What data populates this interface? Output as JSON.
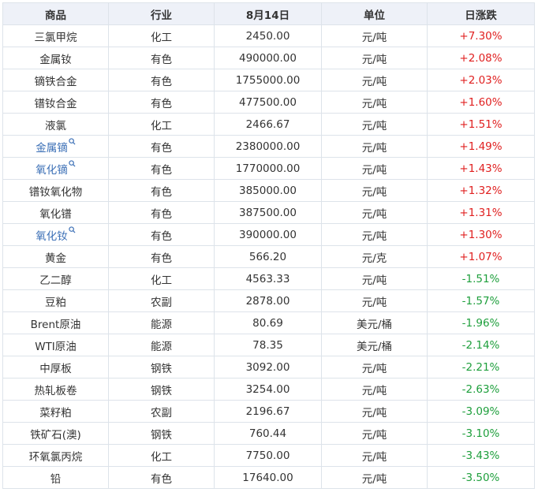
{
  "table": {
    "headers": [
      "商品",
      "行业",
      "8月14日",
      "单位",
      "日涨跌"
    ],
    "rows": [
      {
        "name": "三氯甲烷",
        "industry": "化工",
        "price": "2450.00",
        "unit": "元/吨",
        "change": "+7.30%",
        "direction": "up",
        "link": false
      },
      {
        "name": "金属钕",
        "industry": "有色",
        "price": "490000.00",
        "unit": "元/吨",
        "change": "+2.08%",
        "direction": "up",
        "link": false
      },
      {
        "name": "镝铁合金",
        "industry": "有色",
        "price": "1755000.00",
        "unit": "元/吨",
        "change": "+2.03%",
        "direction": "up",
        "link": false
      },
      {
        "name": "镨钕合金",
        "industry": "有色",
        "price": "477500.00",
        "unit": "元/吨",
        "change": "+1.60%",
        "direction": "up",
        "link": false
      },
      {
        "name": "液氯",
        "industry": "化工",
        "price": "2466.67",
        "unit": "元/吨",
        "change": "+1.51%",
        "direction": "up",
        "link": false
      },
      {
        "name": "金属镝",
        "industry": "有色",
        "price": "2380000.00",
        "unit": "元/吨",
        "change": "+1.49%",
        "direction": "up",
        "link": true
      },
      {
        "name": "氧化镝",
        "industry": "有色",
        "price": "1770000.00",
        "unit": "元/吨",
        "change": "+1.43%",
        "direction": "up",
        "link": true
      },
      {
        "name": "镨钕氧化物",
        "industry": "有色",
        "price": "385000.00",
        "unit": "元/吨",
        "change": "+1.32%",
        "direction": "up",
        "link": false
      },
      {
        "name": "氧化镨",
        "industry": "有色",
        "price": "387500.00",
        "unit": "元/吨",
        "change": "+1.31%",
        "direction": "up",
        "link": false
      },
      {
        "name": "氧化钕",
        "industry": "有色",
        "price": "390000.00",
        "unit": "元/吨",
        "change": "+1.30%",
        "direction": "up",
        "link": true
      },
      {
        "name": "黄金",
        "industry": "有色",
        "price": "566.20",
        "unit": "元/克",
        "change": "+1.07%",
        "direction": "up",
        "link": false
      },
      {
        "name": "乙二醇",
        "industry": "化工",
        "price": "4563.33",
        "unit": "元/吨",
        "change": "-1.51%",
        "direction": "down",
        "link": false
      },
      {
        "name": "豆粕",
        "industry": "农副",
        "price": "2878.00",
        "unit": "元/吨",
        "change": "-1.57%",
        "direction": "down",
        "link": false
      },
      {
        "name": "Brent原油",
        "industry": "能源",
        "price": "80.69",
        "unit": "美元/桶",
        "change": "-1.96%",
        "direction": "down",
        "link": false
      },
      {
        "name": "WTI原油",
        "industry": "能源",
        "price": "78.35",
        "unit": "美元/桶",
        "change": "-2.14%",
        "direction": "down",
        "link": false
      },
      {
        "name": "中厚板",
        "industry": "钢铁",
        "price": "3092.00",
        "unit": "元/吨",
        "change": "-2.21%",
        "direction": "down",
        "link": false
      },
      {
        "name": "热轧板卷",
        "industry": "钢铁",
        "price": "3254.00",
        "unit": "元/吨",
        "change": "-2.63%",
        "direction": "down",
        "link": false
      },
      {
        "name": "菜籽粕",
        "industry": "农副",
        "price": "2196.67",
        "unit": "元/吨",
        "change": "-3.09%",
        "direction": "down",
        "link": false
      },
      {
        "name": "铁矿石(澳)",
        "industry": "钢铁",
        "price": "760.44",
        "unit": "元/吨",
        "change": "-3.10%",
        "direction": "down",
        "link": false
      },
      {
        "name": "环氧氯丙烷",
        "industry": "化工",
        "price": "7750.00",
        "unit": "元/吨",
        "change": "-3.43%",
        "direction": "down",
        "link": false
      },
      {
        "name": "铅",
        "industry": "有色",
        "price": "17640.00",
        "unit": "元/吨",
        "change": "-3.50%",
        "direction": "down",
        "link": false
      }
    ]
  },
  "colors": {
    "up": "#e02020",
    "down": "#1e9f3c",
    "link": "#3b6fb6",
    "header_bg": "#eef1f8",
    "border": "#dde3ea"
  },
  "icons": {
    "link_marker": "search-icon"
  }
}
